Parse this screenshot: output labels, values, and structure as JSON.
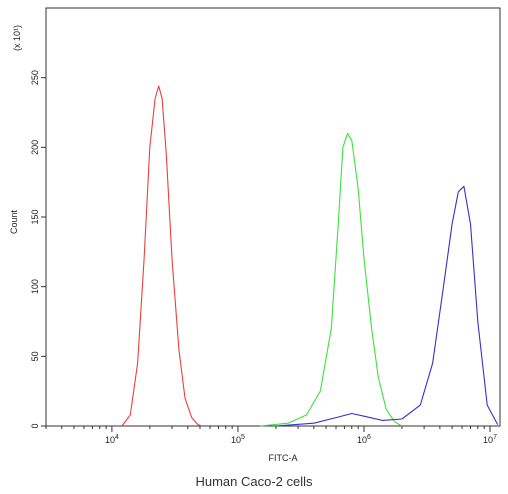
{
  "chart_data": {
    "type": "line",
    "title": "",
    "xlabel": "FITC-A",
    "ylabel": "Count",
    "y_multiplier_label": "(x 10¹)",
    "caption": "Human Caco-2 cells",
    "x_scale": "log",
    "xlim": [
      3000,
      12000000
    ],
    "ylim": [
      0,
      300
    ],
    "x_ticks": [
      {
        "value": 10000,
        "base": "10",
        "exp": "4"
      },
      {
        "value": 100000,
        "base": "10",
        "exp": "5"
      },
      {
        "value": 1000000,
        "base": "10",
        "exp": "6"
      },
      {
        "value": 10000000,
        "base": "10",
        "exp": "7"
      }
    ],
    "y_ticks": [
      0,
      50,
      100,
      150,
      200,
      250
    ],
    "grid": false,
    "series": [
      {
        "color": "#e8413c",
        "x": [
          12000,
          14000,
          16000,
          18000,
          20000,
          22000,
          23500,
          25000,
          27000,
          30000,
          34000,
          38000,
          43000,
          48000,
          52000
        ],
        "y": [
          0,
          8,
          45,
          120,
          200,
          235,
          244,
          235,
          195,
          120,
          55,
          20,
          6,
          1,
          0
        ]
      },
      {
        "color": "#3fe03a",
        "x": [
          150000,
          250000,
          350000,
          450000,
          550000,
          620000,
          680000,
          740000,
          800000,
          900000,
          1000000,
          1150000,
          1300000,
          1500000,
          1750000,
          2000000
        ],
        "y": [
          0,
          2,
          8,
          25,
          70,
          140,
          200,
          210,
          205,
          170,
          120,
          70,
          35,
          12,
          3,
          0
        ]
      },
      {
        "color": "#3232c8",
        "x": [
          200000,
          400000,
          600000,
          800000,
          1000000,
          1400000,
          2000000,
          2800000,
          3500000,
          4200000,
          5000000,
          5600000,
          6200000,
          7000000,
          8000000,
          9500000,
          11500000
        ],
        "y": [
          0,
          2,
          6,
          9,
          7,
          4,
          5,
          15,
          45,
          95,
          145,
          168,
          172,
          145,
          75,
          15,
          1
        ]
      }
    ]
  }
}
